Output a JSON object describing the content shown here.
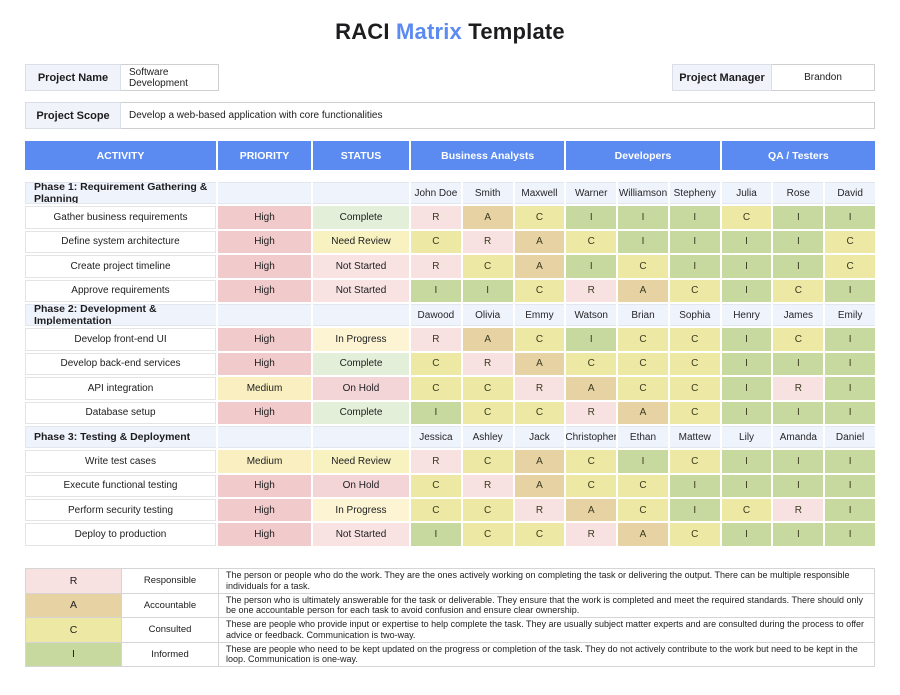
{
  "title": {
    "part1": "RACI ",
    "accent": "Matrix",
    "part2": " Template"
  },
  "info": {
    "project_name_label": "Project Name",
    "project_name_value": "Software Development",
    "project_manager_label": "Project Manager",
    "project_manager_value": "Brandon",
    "project_scope_label": "Project Scope",
    "project_scope_value": "Develop a web-based application with core functionalities"
  },
  "table": {
    "headers": [
      "ACTIVITY",
      "PRIORITY",
      "STATUS",
      "Business Analysts",
      "Developers",
      "QA / Testers"
    ],
    "phases": [
      {
        "name": "Phase 1: Requirement Gathering & Planning",
        "members": [
          "John Doe",
          "Smith",
          "Maxwell",
          "Warner",
          "Williamson",
          "Stepheny",
          "Julia",
          "Rose",
          "David"
        ],
        "tasks": [
          {
            "activity": "Gather business requirements",
            "priority": "High",
            "status": "Complete",
            "raci": [
              "R",
              "A",
              "C",
              "I",
              "I",
              "I",
              "C",
              "I",
              "I"
            ]
          },
          {
            "activity": "Define system architecture",
            "priority": "High",
            "status": "Need Review",
            "raci": [
              "C",
              "R",
              "A",
              "C",
              "I",
              "I",
              "I",
              "I",
              "C"
            ]
          },
          {
            "activity": "Create project timeline",
            "priority": "High",
            "status": "Not Started",
            "raci": [
              "R",
              "C",
              "A",
              "I",
              "C",
              "I",
              "I",
              "I",
              "C"
            ]
          },
          {
            "activity": "Approve requirements",
            "priority": "High",
            "status": "Not Started",
            "raci": [
              "I",
              "I",
              "C",
              "R",
              "A",
              "C",
              "I",
              "C",
              "I"
            ]
          }
        ]
      },
      {
        "name": "Phase 2: Development & Implementation",
        "members": [
          "Dawood",
          "Olivia",
          "Emmy",
          "Watson",
          "Brian",
          "Sophia",
          "Henry",
          "James",
          "Emily"
        ],
        "tasks": [
          {
            "activity": "Develop front-end UI",
            "priority": "High",
            "status": "In Progress",
            "raci": [
              "R",
              "A",
              "C",
              "I",
              "C",
              "C",
              "I",
              "C",
              "I"
            ]
          },
          {
            "activity": "Develop back-end services",
            "priority": "High",
            "status": "Complete",
            "raci": [
              "C",
              "R",
              "A",
              "C",
              "C",
              "C",
              "I",
              "I",
              "I"
            ]
          },
          {
            "activity": "API integration",
            "priority": "Medium",
            "status": "On Hold",
            "raci": [
              "C",
              "C",
              "R",
              "A",
              "C",
              "C",
              "I",
              "R",
              "I"
            ]
          },
          {
            "activity": "Database setup",
            "priority": "High",
            "status": "Complete",
            "raci": [
              "I",
              "C",
              "C",
              "R",
              "A",
              "C",
              "I",
              "I",
              "I"
            ]
          }
        ]
      },
      {
        "name": "Phase 3: Testing & Deployment",
        "members": [
          "Jessica",
          "Ashley",
          "Jack",
          "Christopher",
          "Ethan",
          "Mattew",
          "Lily",
          "Amanda",
          "Daniel"
        ],
        "tasks": [
          {
            "activity": "Write test cases",
            "priority": "Medium",
            "status": "Need Review",
            "raci": [
              "R",
              "C",
              "A",
              "C",
              "I",
              "C",
              "I",
              "I",
              "I"
            ]
          },
          {
            "activity": "Execute functional testing",
            "priority": "High",
            "status": "On Hold",
            "raci": [
              "C",
              "R",
              "A",
              "C",
              "C",
              "I",
              "I",
              "I",
              "I"
            ]
          },
          {
            "activity": "Perform security testing",
            "priority": "High",
            "status": "In Progress",
            "raci": [
              "C",
              "C",
              "R",
              "A",
              "C",
              "I",
              "C",
              "R",
              "I"
            ]
          },
          {
            "activity": "Deploy to production",
            "priority": "High",
            "status": "Not Started",
            "raci": [
              "I",
              "C",
              "C",
              "R",
              "A",
              "C",
              "I",
              "I",
              "I"
            ]
          }
        ]
      }
    ]
  },
  "legend": [
    {
      "code": "R",
      "label": "Responsible",
      "description": "The person or people who do the work. They are the ones actively working on completing the task or delivering the output. There can be multiple responsible individuals for a task."
    },
    {
      "code": "A",
      "label": "Accountable",
      "description": "The person who is ultimately answerable for the task or deliverable. They ensure that the work is completed and meet the required standards. There should only be one accountable person for each task to avoid confusion and ensure clear ownership."
    },
    {
      "code": "C",
      "label": "Consulted",
      "description": "These are people who provide input or expertise to help complete the task. They are usually subject matter experts and are consulted during the process to offer advice or feedback. Communication is two-way."
    },
    {
      "code": "I",
      "label": "Informed",
      "description": "These are people who need to be kept updated on the progress or completion of the task. They do not actively contribute to the work but need to be kept in the loop. Communication is one-way."
    }
  ],
  "colors": {
    "accent": "#5B8BF0",
    "header_bg": "#5B8BF0",
    "phase_row_bg": "#EFF3FB",
    "raci": {
      "R": "#F8E1E1",
      "A": "#E7D2A4",
      "C": "#EDE9A4",
      "I": "#C8D9A0"
    },
    "priority": {
      "High": "#F1CBCB",
      "Medium": "#F9EFC0"
    },
    "status": {
      "Complete": "#E3EFD9",
      "Need Review": "#F8F1C0",
      "Not Started": "#F8E2E2",
      "In Progress": "#FCF4D2",
      "On Hold": "#F4D5D7"
    }
  }
}
